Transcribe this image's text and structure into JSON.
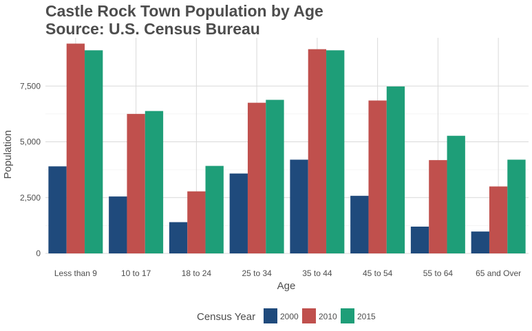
{
  "chart_data": {
    "type": "bar",
    "title_lines": [
      "Castle Rock Town Population by Age",
      "Source: U.S. Census Bureau"
    ],
    "xlabel": "Age",
    "ylabel": "Population",
    "categories": [
      "Less than 9",
      "10 to 17",
      "18 to 24",
      "25 to 34",
      "35 to 44",
      "45 to 54",
      "55 to 64",
      "65 and Over"
    ],
    "yticks": [
      0,
      2500,
      5000,
      7500
    ],
    "ytick_labels": [
      "0",
      "2,500",
      "5,000",
      "7,500"
    ],
    "ylim": [
      0,
      10000
    ],
    "grid": true,
    "legend": {
      "title": "Census Year",
      "position": "bottom"
    },
    "series": [
      {
        "name": "2000",
        "color": "#1f4a7c",
        "values": [
          3900,
          2550,
          1400,
          3580,
          4200,
          2580,
          1200,
          980
        ]
      },
      {
        "name": "2010",
        "color": "#c0504d",
        "values": [
          9400,
          6250,
          2780,
          6750,
          9150,
          6850,
          4180,
          3000
        ]
      },
      {
        "name": "2015",
        "color": "#1e9e78",
        "values": [
          9100,
          6380,
          3920,
          6880,
          9100,
          7480,
          5270,
          4200
        ]
      }
    ]
  }
}
